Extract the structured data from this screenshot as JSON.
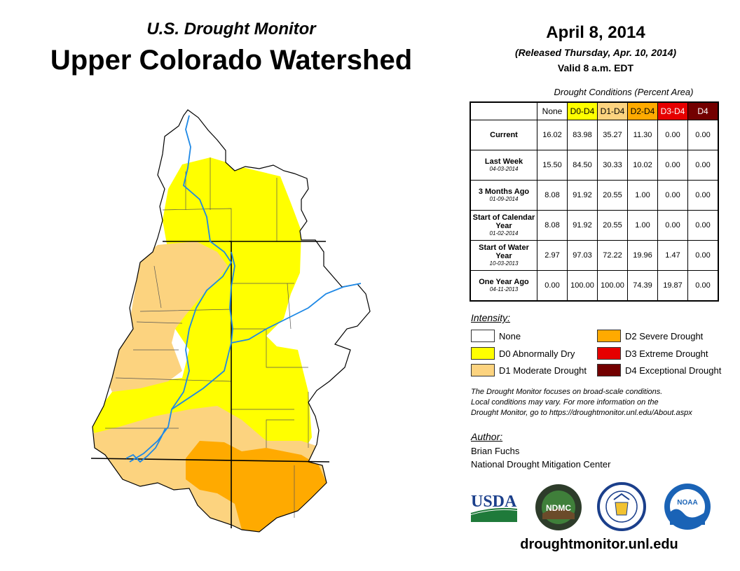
{
  "header": {
    "subtitle": "U.S. Drought Monitor",
    "title": "Upper Colorado Watershed"
  },
  "release": {
    "date": "April 8, 2014",
    "released": "(Released Thursday, Apr. 10, 2014)",
    "valid": "Valid 8 a.m. EDT"
  },
  "table": {
    "caption": "Drought Conditions (Percent Area)",
    "columns": [
      {
        "label": "None",
        "color": "#ffffff",
        "text_color": "#000000"
      },
      {
        "label": "D0-D4",
        "color": "#ffff00",
        "text_color": "#000000"
      },
      {
        "label": "D1-D4",
        "color": "#fcd37f",
        "text_color": "#000000"
      },
      {
        "label": "D2-D4",
        "color": "#ffaa00",
        "text_color": "#000000"
      },
      {
        "label": "D3-D4",
        "color": "#e60000",
        "text_color": "#ffffff"
      },
      {
        "label": "D4",
        "color": "#730000",
        "text_color": "#ffffff"
      }
    ],
    "rows": [
      {
        "label": "Current",
        "date": "",
        "values": [
          "16.02",
          "83.98",
          "35.27",
          "11.30",
          "0.00",
          "0.00"
        ]
      },
      {
        "label": "Last Week",
        "date": "04-03-2014",
        "values": [
          "15.50",
          "84.50",
          "30.33",
          "10.02",
          "0.00",
          "0.00"
        ]
      },
      {
        "label": "3 Months Ago",
        "date": "01-09-2014",
        "values": [
          "8.08",
          "91.92",
          "20.55",
          "1.00",
          "0.00",
          "0.00"
        ]
      },
      {
        "label": "Start of Calendar Year",
        "date": "01-02-2014",
        "values": [
          "8.08",
          "91.92",
          "20.55",
          "1.00",
          "0.00",
          "0.00"
        ]
      },
      {
        "label": "Start of Water Year",
        "date": "10-03-2013",
        "values": [
          "2.97",
          "97.03",
          "72.22",
          "19.96",
          "1.47",
          "0.00"
        ]
      },
      {
        "label": "One Year Ago",
        "date": "04-11-2013",
        "values": [
          "0.00",
          "100.00",
          "100.00",
          "74.39",
          "19.87",
          "0.00"
        ]
      }
    ]
  },
  "legend": {
    "title": "Intensity:",
    "items": [
      {
        "label": "None",
        "color": "#ffffff"
      },
      {
        "label": "D0 Abnormally Dry",
        "color": "#ffff00"
      },
      {
        "label": "D1 Moderate Drought",
        "color": "#fcd37f"
      },
      {
        "label": "D2 Severe Drought",
        "color": "#ffaa00"
      },
      {
        "label": "D3 Extreme Drought",
        "color": "#e60000"
      },
      {
        "label": "D4 Exceptional Drought",
        "color": "#730000"
      }
    ]
  },
  "notes": {
    "line1": "The Drought Monitor focuses on broad-scale conditions.",
    "line2": "Local conditions may vary. For more information on the",
    "line3": "Drought Monitor, go to https://droughtmonitor.unl.edu/About.aspx"
  },
  "author": {
    "title": "Author:",
    "name": "Brian Fuchs",
    "org": "National Drought Mitigation Center"
  },
  "logos": {
    "usda": "USDA",
    "ndmc": "NDMC",
    "noaa": "NOAA"
  },
  "footer": {
    "website": "droughtmonitor.unl.edu"
  }
}
